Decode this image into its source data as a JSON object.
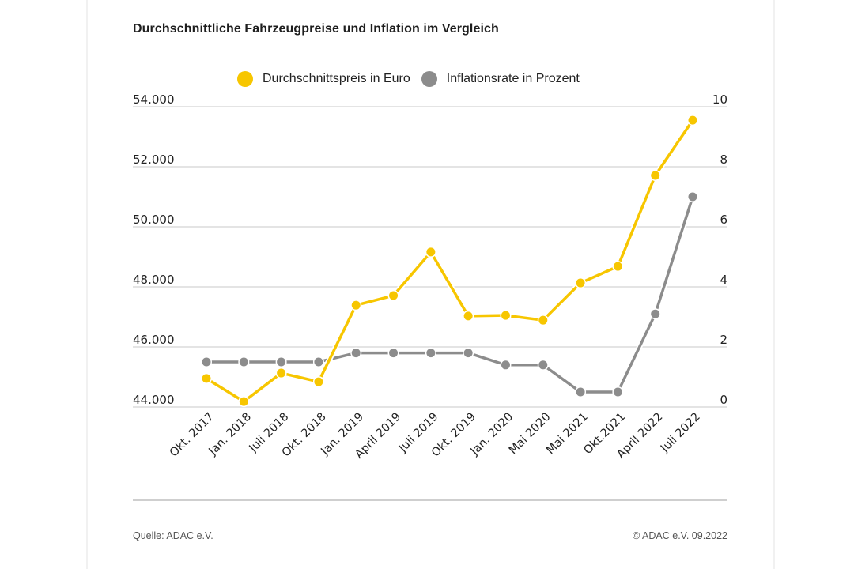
{
  "chart_title": "Durchschnittliche Fahrzeugpreise und Inflation im Vergleich",
  "legend": [
    {
      "label": "Durchschnittspreis in Euro",
      "color": "#f7c600"
    },
    {
      "label": "Inflationsrate in Prozent",
      "color": "#8c8c8c"
    }
  ],
  "footer": {
    "source": "Quelle: ADAC e.V.",
    "copyright": "© ADAC e.V. 09.2022"
  },
  "chart_data": {
    "type": "line",
    "title": "Durchschnittliche Fahrzeugpreise und Inflation im Vergleich",
    "xlabel": "",
    "ylabel": "Durchschnittspreis in Euro",
    "y2label": "Inflationsrate in Prozent",
    "categories": [
      "Okt. 2017",
      "Jan. 2018",
      "Juli 2018",
      "Okt. 2018",
      "Jan. 2019",
      "April 2019",
      "Juli 2019",
      "Okt. 2019",
      "Jan. 2020",
      "Mai 2020",
      "Mai 2021",
      "Okt.2021",
      "April 2022",
      "Juli 2022"
    ],
    "series": [
      {
        "name": "Durchschnittspreis in Euro",
        "axis": "left",
        "color": "#f7c600",
        "values": [
          44950,
          44180,
          45130,
          44840,
          47390,
          47710,
          49160,
          47030,
          47050,
          46890,
          48130,
          48680,
          51710,
          53550
        ]
      },
      {
        "name": "Inflationsrate in Prozent",
        "axis": "right",
        "color": "#8c8c8c",
        "values": [
          1.5,
          1.5,
          1.5,
          1.5,
          1.8,
          1.8,
          1.8,
          1.8,
          1.4,
          1.4,
          0.5,
          0.5,
          3.1,
          7.0
        ]
      }
    ],
    "ylim": [
      44000,
      54000
    ],
    "y2lim": [
      0,
      10
    ],
    "yticks": [
      "44.000",
      "46.000",
      "48.000",
      "50.000",
      "52.000",
      "54.000"
    ],
    "y2ticks": [
      "0",
      "2",
      "4",
      "6",
      "8",
      "10"
    ],
    "grid": true,
    "legend_position": "top"
  }
}
